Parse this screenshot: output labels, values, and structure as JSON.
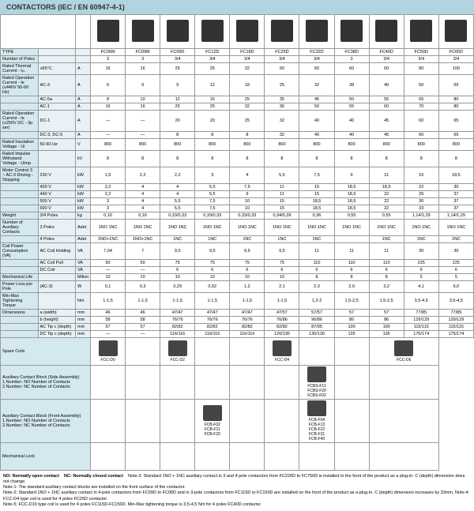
{
  "title": "CONTACTORS (IEC / EN 60947-4-1)",
  "models": [
    "FC06M",
    "FC09M",
    "FC09D",
    "FC12D",
    "FC18D",
    "FC25D",
    "FC32D",
    "FC38D",
    "FC40D",
    "FC50D",
    "FC65D"
  ],
  "rows": [
    {
      "l": "TYPE",
      "c": "",
      "u": "",
      "v": [
        "FC06M",
        "FC09M",
        "FC09D",
        "FC12D",
        "FC18D",
        "FC25D",
        "FC32D",
        "FC38D",
        "FC40D",
        "FC50D",
        "FC65D"
      ]
    },
    {
      "l": "Number of Poles",
      "c": "",
      "u": "",
      "v": [
        "3",
        "3",
        "3/4",
        "3/4",
        "3/4",
        "3/4",
        "3/4",
        "3",
        "3/4",
        "3/4",
        "3/4"
      ]
    },
    {
      "l": "Rated Thermal Current - Iₜₕ",
      "c": "≤55°C",
      "u": "A",
      "v": [
        "16",
        "16",
        "25",
        "25",
        "32",
        "50",
        "60",
        "60",
        "60",
        "80",
        "100"
      ]
    },
    {
      "l": "Rated Operation Current - Ie (≤440V 50-60 Hz)",
      "c": "AC-3",
      "u": "A",
      "v": [
        "6",
        "9",
        "9",
        "12",
        "18",
        "25",
        "32",
        "38",
        "40",
        "50",
        "65"
      ]
    },
    {
      "l": "",
      "c": "AC-5a",
      "u": "A",
      "v": [
        "8",
        "10",
        "12",
        "16",
        "25",
        "35",
        "45",
        "50",
        "55",
        "65",
        "80"
      ]
    },
    {
      "l": "",
      "c": "AC-1",
      "u": "A",
      "v": [
        "16",
        "16",
        "25",
        "25",
        "32",
        "36",
        "50",
        "55",
        "60",
        "70",
        "80"
      ]
    },
    {
      "l": "Rated Operation Current - Ie (≤250V DC - 3p ser)",
      "c": "DC-1",
      "u": "A",
      "v": [
        "—",
        "—",
        "20",
        "20",
        "25",
        "32",
        "40",
        "40",
        "45",
        "60",
        "65"
      ]
    },
    {
      "l": "",
      "c": "DC-3, DC-5",
      "u": "A",
      "v": [
        "—",
        "—",
        "8",
        "8",
        "8",
        "32",
        "40",
        "40",
        "45",
        "60",
        "65"
      ]
    },
    {
      "l": "Rated Insulation Voltage - Ui",
      "c": "50-60 Hz",
      "u": "V",
      "v": [
        "800",
        "800",
        "800",
        "800",
        "800",
        "800",
        "800",
        "800",
        "800",
        "800",
        "800"
      ]
    },
    {
      "l": "Rated Impulse Withstand Voltage - Uimp",
      "c": "",
      "u": "kV",
      "v": [
        "8",
        "8",
        "8",
        "8",
        "8",
        "8",
        "8",
        "8",
        "8",
        "8",
        "8"
      ]
    },
    {
      "l": "Motor Control 3 ~ AC-3 Driving - Stopping",
      "c": "230 V",
      "u": "kW",
      "v": [
        "1,5",
        "2,2",
        "2,2",
        "3",
        "4",
        "5,5",
        "7,5",
        "9",
        "11",
        "15",
        "18,5"
      ]
    },
    {
      "l": "",
      "c": "400 V",
      "u": "kW",
      "v": [
        "2,2",
        "4",
        "4",
        "5,5",
        "7,5",
        "11",
        "15",
        "18,5",
        "18,5",
        "22",
        "30"
      ]
    },
    {
      "l": "",
      "c": "440 V",
      "u": "kW",
      "v": [
        "2,2",
        "4",
        "4",
        "5,5",
        "9",
        "11",
        "15",
        "18,5",
        "22",
        "25",
        "37"
      ]
    },
    {
      "l": "",
      "c": "500 V",
      "u": "kW",
      "v": [
        "3",
        "4",
        "5,5",
        "7,5",
        "10",
        "15",
        "18,5",
        "18,5",
        "22",
        "30",
        "37"
      ]
    },
    {
      "l": "",
      "c": "690 V",
      "u": "kW",
      "v": [
        "3",
        "4",
        "5,5",
        "7,5",
        "10",
        "15",
        "18,5",
        "18,5",
        "22",
        "33",
        "37"
      ]
    },
    {
      "l": "Weight",
      "c": "3/4 Poles",
      "u": "kg",
      "v": [
        "0,16",
        "0,16",
        "0,33/0,33",
        "0,33/0,33",
        "0,33/0,33",
        "0,34/0,39",
        "0,36",
        "0,55",
        "0,55",
        "1,14/1,29",
        "1,14/1,29"
      ]
    },
    {
      "l": "Number of Auxiliary Contacts",
      "c": "3 Poles",
      "u": "Adet",
      "v": [
        "1NO 1NC",
        "1NO 1NC",
        "1NO 1NC",
        "1NO 1NC",
        "1NO 1NC",
        "1NO 1NC",
        "1NO 1NC",
        "1NO 1NC",
        "1NO 1NC",
        "1NO 1NC",
        "1NO 1NC"
      ]
    },
    {
      "l": "",
      "c": "4 Poles",
      "u": "Adet",
      "v": [
        "1NO+1NC",
        "1NO+1NC",
        "1NC",
        "1NC",
        "1NC",
        "1NC",
        "1NC",
        "",
        "1NC",
        "1NC",
        "1NC"
      ]
    },
    {
      "l": "Coil Power Consumption (VA)",
      "c": "AC Coil Holding",
      "u": "VA",
      "v": [
        "7,04",
        "7",
        "9,5",
        "9,5",
        "9,5",
        "9,5",
        "11",
        "11",
        "11",
        "30",
        "30"
      ]
    },
    {
      "l": "",
      "c": "AC Coil Pull",
      "u": "VA",
      "v": [
        "50",
        "50",
        "75",
        "75",
        "75",
        "75",
        "110",
        "110",
        "110",
        "225",
        "225"
      ]
    },
    {
      "l": "",
      "c": "DC Coil",
      "u": "VA",
      "v": [
        "—",
        "—",
        "6",
        "6",
        "6",
        "6",
        "6",
        "6",
        "6",
        "6",
        "6"
      ]
    },
    {
      "l": "Mechanical Life",
      "c": "",
      "u": "Milion",
      "v": [
        "10",
        "10",
        "10",
        "10",
        "10",
        "10",
        "8",
        "8",
        "8",
        "5",
        "5"
      ]
    },
    {
      "l": "Power Loss per Pole",
      "c": "(AC-3)",
      "u": "W",
      "v": [
        "0,1",
        "0,3",
        "0,29",
        "0,52",
        "1,2",
        "2,1",
        "2,3",
        "2,9",
        "3,2",
        "4,1",
        "6,0"
      ]
    },
    {
      "l": "Min-Max Tightening Torque",
      "c": "",
      "u": "Nm",
      "v": [
        "1-1,5",
        "1-1,5",
        "1-1,5",
        "1-1,5",
        "1-1,5",
        "1-1,5",
        "1,2-2",
        "1,5-2,5",
        "1,5-2,5",
        "3,5-4,5",
        "3,5-4,5"
      ]
    },
    {
      "l": "Dimensions",
      "c": "a (width)",
      "u": "mm",
      "v": [
        "46",
        "46",
        "47/47",
        "47/47",
        "47/47",
        "47/57",
        "57/57",
        "57",
        "57",
        "77/85",
        "77/85"
      ]
    },
    {
      "l": "",
      "c": "b (height)",
      "u": "mm",
      "v": [
        "58",
        "58",
        "76/76",
        "76/76",
        "76/76",
        "76/86",
        "96/86",
        "86",
        "86",
        "129/129",
        "129/129"
      ]
    },
    {
      "l": "",
      "c": "AC Tip c (depth)",
      "u": "mm",
      "v": [
        "57",
        "57",
        "82/82",
        "82/82",
        "82/82",
        "82/82",
        "87/95",
        "100",
        "100",
        "115/115",
        "115/115"
      ]
    },
    {
      "l": "",
      "c": "DC Tip c (depth)",
      "u": "mm",
      "v": [
        "—",
        "—",
        "116/116",
        "116/116",
        "116/116",
        "120/130",
        "130/130",
        "135",
        "135",
        "175/174",
        "175/174"
      ]
    }
  ],
  "spares": [
    {
      "l": "Spare Coils",
      "items": [
        "FCC-D0",
        "",
        "FCC-D2",
        "",
        "",
        "FCC-D4",
        "",
        "",
        "FCC-D6"
      ]
    },
    {
      "l": "Auxiliary Contact Block (Side Assembly)\n1.Number: NO Number of Contacts\n2.Number: NC Number of Contacts",
      "items": [
        "",
        "",
        "",
        "",
        "",
        "",
        "FCBS-F11\nFCBS-F20\nFCBS-F02",
        "",
        ""
      ]
    },
    {
      "l": "Auxiliary Contact Block (Front Assembly)\n1.Number: NO Number of Contacts\n2.Number: NC Number of Contacts",
      "items": [
        "",
        "",
        "",
        "FCB-F02\nFCB-F11\nFCB-F20",
        "",
        "",
        "FCB-F04\nFCB-F13\nFCB-F22\nFCB-F31\nFCB-F40",
        "",
        ""
      ]
    },
    {
      "l": "Mechanical Lock",
      "items": [
        "",
        "",
        "",
        "",
        "",
        "",
        "",
        "",
        ""
      ]
    }
  ],
  "notes": {
    "no": "NO: Normally open contact",
    "nc": "NC: Normally closed contact",
    "n1": "Note-1: The standard auxiliary contact blocks are installed on the front surface of the contactor.",
    "n2": "Note-2: Standard 1NO + 1NC auxiliary contact in 4-pole contactors from FC09D to FC95D and in 3-pole contactors from FC115D to FC150D are installed on the front of the product as a plug-in. C (depth) dimension increases by 33mm.",
    "n3": "Note-3: Standard 1NO + 1NC auxiliary contact in 3 and 4 pole contactors from FC220D to FC750D is installed to the front of the product as a plug-in. C (depth) dimension does not change.",
    "n4": "Note-4: FCC-D4 type coil is used for 4 poles FC25D contactor.",
    "n5": "Note-5: FCC-D10 type coil is used for 4 poles FC115D-FC150D. Min-Max tightening torque is 3,5-4,5 Nm for 4 poles FC40D contactor."
  },
  "colors": {
    "hdr": "#b0d4e0",
    "row": "#d4e8f0",
    "alt": "#e8f2f6"
  }
}
